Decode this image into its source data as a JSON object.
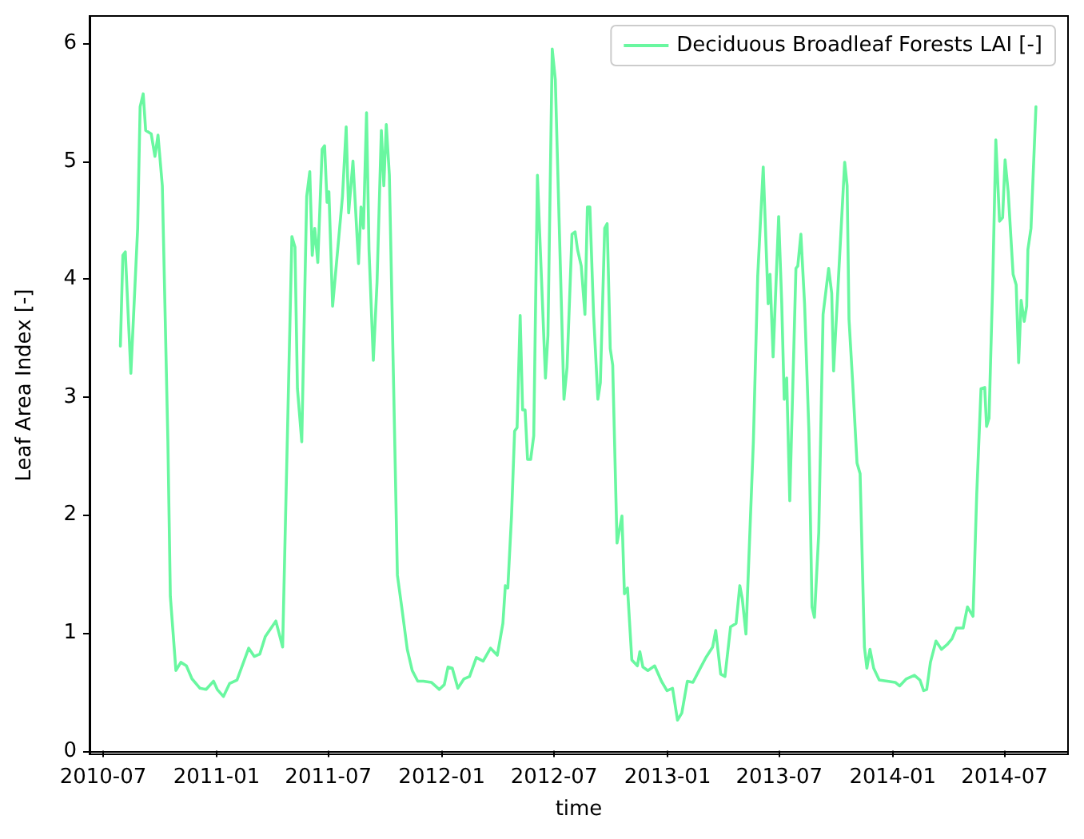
{
  "chart_data": {
    "type": "line",
    "xlabel": "time",
    "ylabel": "Leaf Area Index [-]",
    "legend": "top right",
    "grid": false,
    "marker": "none",
    "line_style": "solid",
    "xlim": [
      "2010-06-09",
      "2014-10-12"
    ],
    "xticks": [
      "2010-07",
      "2011-01",
      "2011-07",
      "2012-01",
      "2012-07",
      "2013-01",
      "2013-07",
      "2014-01",
      "2014-07"
    ],
    "ylim": [
      -0.03,
      6.23
    ],
    "yticks": [
      0,
      1,
      2,
      3,
      4,
      5,
      6
    ],
    "series": [
      {
        "name": "Deciduous Broadleaf Forests LAI [-]",
        "color": "#69f7a0",
        "x": [
          "2010-07-29",
          "2010-08-02",
          "2010-08-06",
          "2010-08-15",
          "2010-08-26",
          "2010-08-30",
          "2010-09-04",
          "2010-09-08",
          "2010-09-17",
          "2010-09-23",
          "2010-09-28",
          "2010-10-05",
          "2010-10-14",
          "2010-10-18",
          "2010-10-27",
          "2010-11-04",
          "2010-11-13",
          "2010-11-22",
          "2010-12-05",
          "2010-12-15",
          "2010-12-27",
          "2011-01-02",
          "2011-01-12",
          "2011-01-22",
          "2011-02-03",
          "2011-02-22",
          "2011-03-03",
          "2011-03-12",
          "2011-03-21",
          "2011-04-07",
          "2011-04-18",
          "2011-05-03",
          "2011-05-08",
          "2011-05-12",
          "2011-05-19",
          "2011-05-27",
          "2011-06-01",
          "2011-06-05",
          "2011-06-09",
          "2011-06-14",
          "2011-06-21",
          "2011-06-25",
          "2011-06-29",
          "2011-07-02",
          "2011-07-08",
          "2011-07-24",
          "2011-07-30",
          "2011-08-03",
          "2011-08-10",
          "2011-08-19",
          "2011-08-23",
          "2011-08-27",
          "2011-09-01",
          "2011-09-05",
          "2011-09-12",
          "2011-09-18",
          "2011-09-25",
          "2011-09-29",
          "2011-10-03",
          "2011-10-08",
          "2011-10-15",
          "2011-10-21",
          "2011-10-28",
          "2011-11-06",
          "2011-11-14",
          "2011-11-23",
          "2011-12-02",
          "2011-12-15",
          "2011-12-28",
          "2012-01-05",
          "2012-01-11",
          "2012-01-18",
          "2012-01-27",
          "2012-02-06",
          "2012-02-15",
          "2012-02-26",
          "2012-03-08",
          "2012-03-20",
          "2012-03-31",
          "2012-04-09",
          "2012-04-13",
          "2012-04-17",
          "2012-04-23",
          "2012-04-28",
          "2012-05-02",
          "2012-05-07",
          "2012-05-11",
          "2012-05-15",
          "2012-05-19",
          "2012-05-24",
          "2012-05-29",
          "2012-06-04",
          "2012-06-08",
          "2012-06-17",
          "2012-06-21",
          "2012-06-28",
          "2012-07-03",
          "2012-07-09",
          "2012-07-17",
          "2012-07-22",
          "2012-07-30",
          "2012-08-04",
          "2012-08-08",
          "2012-08-14",
          "2012-08-20",
          "2012-08-24",
          "2012-08-28",
          "2012-09-03",
          "2012-09-10",
          "2012-09-14",
          "2012-09-21",
          "2012-09-25",
          "2012-09-30",
          "2012-10-04",
          "2012-10-11",
          "2012-10-19",
          "2012-10-23",
          "2012-10-28",
          "2012-11-04",
          "2012-11-13",
          "2012-11-17",
          "2012-11-22",
          "2012-11-30",
          "2012-12-11",
          "2012-12-22",
          "2012-12-31",
          "2013-01-09",
          "2013-01-17",
          "2013-01-24",
          "2013-02-02",
          "2013-02-11",
          "2013-02-21",
          "2013-03-04",
          "2013-03-15",
          "2013-03-20",
          "2013-03-28",
          "2013-04-04",
          "2013-04-13",
          "2013-04-22",
          "2013-04-28",
          "2013-05-02",
          "2013-05-08",
          "2013-05-20",
          "2013-05-27",
          "2013-06-05",
          "2013-06-13",
          "2013-06-16",
          "2013-06-21",
          "2013-06-30",
          "2013-07-05",
          "2013-07-09",
          "2013-07-13",
          "2013-07-18",
          "2013-07-28",
          "2013-07-31",
          "2013-08-05",
          "2013-08-11",
          "2013-08-18",
          "2013-08-23",
          "2013-08-27",
          "2013-09-03",
          "2013-09-10",
          "2013-09-19",
          "2013-09-24",
          "2013-09-27",
          "2013-10-06",
          "2013-10-15",
          "2013-10-19",
          "2013-10-22",
          "2013-10-28",
          "2013-11-04",
          "2013-11-09",
          "2013-11-16",
          "2013-11-20",
          "2013-11-25",
          "2013-12-01",
          "2013-12-10",
          "2013-12-23",
          "2014-01-05",
          "2014-01-12",
          "2014-01-23",
          "2014-02-05",
          "2014-02-14",
          "2014-02-20",
          "2014-02-25",
          "2014-03-03",
          "2014-03-12",
          "2014-03-21",
          "2014-03-30",
          "2014-04-07",
          "2014-04-14",
          "2014-04-25",
          "2014-05-02",
          "2014-05-11",
          "2014-05-17",
          "2014-05-24",
          "2014-05-30",
          "2014-06-02",
          "2014-06-06",
          "2014-06-12",
          "2014-06-17",
          "2014-06-23",
          "2014-06-28",
          "2014-07-02",
          "2014-07-07",
          "2014-07-15",
          "2014-07-20",
          "2014-07-24",
          "2014-07-28",
          "2014-08-02",
          "2014-08-06",
          "2014-08-08",
          "2014-08-13",
          "2014-08-21"
        ],
        "values": [
          3.43,
          4.2,
          4.23,
          3.2,
          4.43,
          5.46,
          5.57,
          5.26,
          5.23,
          5.04,
          5.22,
          4.79,
          2.62,
          1.31,
          0.68,
          0.75,
          0.72,
          0.61,
          0.53,
          0.52,
          0.59,
          0.52,
          0.46,
          0.57,
          0.6,
          0.87,
          0.8,
          0.82,
          0.97,
          1.1,
          0.88,
          4.36,
          4.27,
          3.07,
          2.62,
          4.7,
          4.91,
          4.2,
          4.43,
          4.14,
          5.1,
          5.13,
          4.65,
          4.74,
          3.77,
          4.7,
          5.29,
          4.56,
          5.0,
          4.13,
          4.61,
          4.43,
          5.41,
          4.25,
          3.31,
          3.97,
          5.26,
          4.79,
          5.31,
          4.88,
          3.07,
          1.49,
          1.22,
          0.86,
          0.68,
          0.59,
          0.59,
          0.58,
          0.52,
          0.56,
          0.71,
          0.7,
          0.53,
          0.61,
          0.63,
          0.79,
          0.76,
          0.87,
          0.81,
          1.08,
          1.4,
          1.38,
          1.99,
          2.71,
          2.74,
          3.69,
          2.89,
          2.89,
          2.47,
          2.47,
          2.67,
          4.88,
          4.34,
          3.16,
          3.52,
          5.95,
          5.69,
          4.52,
          2.98,
          3.25,
          4.38,
          4.4,
          4.25,
          4.11,
          3.7,
          4.61,
          4.61,
          3.7,
          2.98,
          3.12,
          4.43,
          4.47,
          3.41,
          3.27,
          1.76,
          1.99,
          1.33,
          1.38,
          0.77,
          0.72,
          0.84,
          0.71,
          0.68,
          0.72,
          0.59,
          0.51,
          0.53,
          0.26,
          0.32,
          0.59,
          0.58,
          0.68,
          0.79,
          0.88,
          1.02,
          0.65,
          0.63,
          1.05,
          1.08,
          1.4,
          1.29,
          0.99,
          2.62,
          4.02,
          4.95,
          3.79,
          4.04,
          3.34,
          4.53,
          3.79,
          2.98,
          3.16,
          2.12,
          4.09,
          4.11,
          4.38,
          3.79,
          2.71,
          1.22,
          1.13,
          1.85,
          3.7,
          4.09,
          3.88,
          3.22,
          4.11,
          4.99,
          4.79,
          3.66,
          3.12,
          2.44,
          2.35,
          0.88,
          0.7,
          0.86,
          0.7,
          0.6,
          0.59,
          0.58,
          0.55,
          0.61,
          0.64,
          0.6,
          0.51,
          0.52,
          0.75,
          0.93,
          0.86,
          0.9,
          0.95,
          1.04,
          1.04,
          1.22,
          1.14,
          2.17,
          3.07,
          3.08,
          2.75,
          2.82,
          3.97,
          5.18,
          4.49,
          4.52,
          5.01,
          4.74,
          4.04,
          3.95,
          3.29,
          3.82,
          3.64,
          3.77,
          4.25,
          4.43,
          5.46
        ]
      }
    ]
  }
}
